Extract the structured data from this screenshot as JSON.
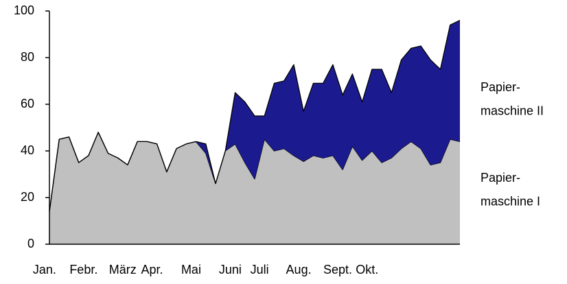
{
  "chart_data": {
    "type": "stacked_area",
    "categories": [
      "Jan.",
      null,
      null,
      null,
      "Febr.",
      null,
      null,
      null,
      "März",
      null,
      null,
      "Apr.",
      null,
      null,
      null,
      "Mai",
      null,
      null,
      null,
      "Juni",
      null,
      null,
      "Juli",
      null,
      null,
      null,
      "Aug.",
      null,
      null,
      null,
      "Sept.",
      null,
      null,
      "Okt.",
      null,
      null,
      null,
      null,
      null,
      null,
      null,
      null,
      null
    ],
    "series": [
      {
        "name": "Papier-\nmaschine I",
        "color": "#c0c0c0",
        "values": [
          14,
          45,
          46,
          35,
          38,
          48,
          39,
          37,
          34,
          44,
          44,
          43,
          31,
          41,
          43,
          44,
          39,
          26,
          40,
          43,
          35,
          28,
          45,
          40,
          41,
          38,
          35.5,
          38,
          37,
          38,
          32,
          42,
          36,
          40,
          35,
          37,
          41,
          44,
          41,
          34,
          35,
          45,
          44
        ]
      },
      {
        "name": "Papier-\nmaschine II",
        "color": "#1b1b8f",
        "values": [
          0,
          0,
          0,
          0,
          0,
          0,
          0,
          0,
          0,
          0,
          0,
          0,
          0,
          0,
          0,
          0,
          4,
          0,
          0,
          22,
          26,
          27,
          10,
          29,
          29,
          39,
          21.5,
          31,
          32,
          39,
          32,
          31,
          25,
          35,
          40,
          28,
          38,
          40,
          44,
          45,
          40,
          49,
          52
        ]
      }
    ],
    "ylim": [
      0,
      100
    ],
    "yticks": [
      0,
      20,
      40,
      60,
      80,
      100
    ],
    "grid": false
  }
}
